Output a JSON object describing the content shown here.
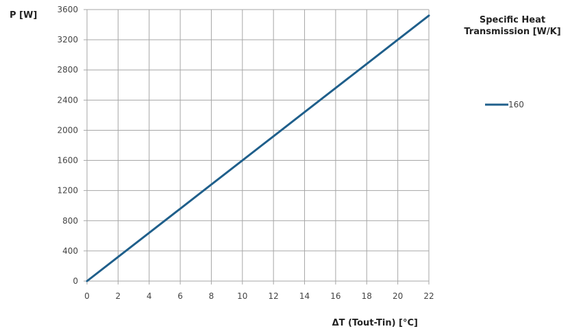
{
  "chart_data": {
    "type": "line",
    "ylabel": "P [W]",
    "xlabel": "ΔT (Tout-Tin) [°C]",
    "legend_title_lines": [
      "Specific Heat",
      "Transmission [W/K]"
    ],
    "legend_placement": "right",
    "grid": true,
    "xlim": [
      0,
      22
    ],
    "ylim": [
      0,
      3600
    ],
    "x_ticks": [
      0,
      2,
      4,
      6,
      8,
      10,
      12,
      14,
      16,
      18,
      20,
      22
    ],
    "y_ticks": [
      0,
      400,
      800,
      1200,
      1600,
      2000,
      2400,
      2800,
      3200,
      3600
    ],
    "series": [
      {
        "name": "160",
        "color": "#1f5f8b",
        "x": [
          0,
          2,
          4,
          6,
          8,
          10,
          12,
          14,
          16,
          18,
          20,
          22
        ],
        "y": [
          0,
          320,
          640,
          960,
          1280,
          1600,
          1920,
          2240,
          2560,
          2880,
          3200,
          3520
        ]
      }
    ]
  }
}
